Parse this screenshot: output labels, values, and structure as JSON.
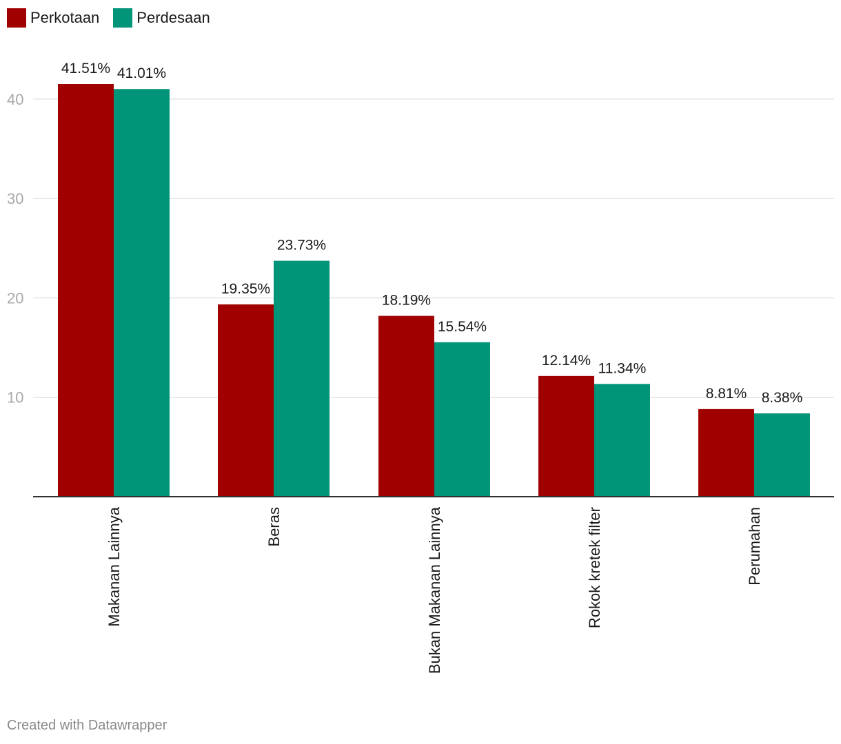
{
  "chart_data": {
    "type": "bar",
    "categories": [
      "Makanan Lainnya",
      "Beras",
      "Bukan Makanan Lainnya",
      "Rokok kretek filter",
      "Perumahan"
    ],
    "series": [
      {
        "name": "Perkotaan",
        "color": "#a00000",
        "values": [
          41.51,
          19.35,
          18.19,
          12.14,
          8.81
        ],
        "labels": [
          "41.51%",
          "19.35%",
          "18.19%",
          "12.14%",
          "8.81%"
        ]
      },
      {
        "name": "Perdesaan",
        "color": "#009478",
        "values": [
          41.01,
          23.73,
          15.54,
          11.34,
          8.38
        ],
        "labels": [
          "41.01%",
          "23.73%",
          "15.54%",
          "11.34%",
          "8.38%"
        ]
      }
    ],
    "yticks": [
      "10",
      "20",
      "30",
      "40"
    ],
    "ylim": [
      0,
      50
    ],
    "grid": true,
    "legend_position": "top-left"
  },
  "footer": {
    "credit": "Created with Datawrapper"
  }
}
